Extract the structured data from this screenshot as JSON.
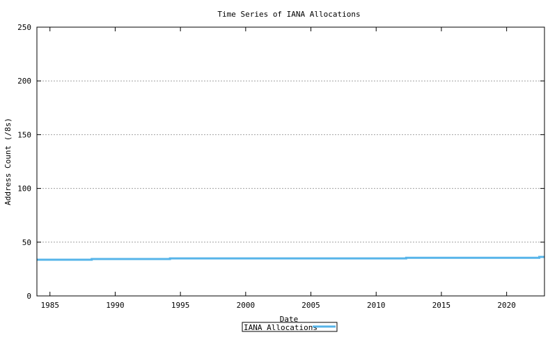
{
  "chart_data": {
    "type": "line",
    "title": "Time Series of IANA Allocations",
    "xlabel": "Date",
    "ylabel": "Address Count (/8s)",
    "xlim": [
      1984.0,
      2022.9
    ],
    "ylim": [
      0,
      250
    ],
    "xticks": [
      1985,
      1990,
      1995,
      2000,
      2005,
      2010,
      2015,
      2020
    ],
    "yticks": [
      0,
      50,
      100,
      150,
      200,
      250
    ],
    "grid": "horizontal dotted",
    "legend": "bottom-center",
    "series": [
      {
        "name": "IANA Allocations",
        "color": "#56b4e9",
        "step": true,
        "x": [
          1984.0,
          1988.2,
          1994.2,
          2012.3,
          2022.5,
          2022.9
        ],
        "y": [
          33.7,
          34.3,
          34.9,
          35.5,
          36.3,
          36.3
        ]
      }
    ]
  }
}
